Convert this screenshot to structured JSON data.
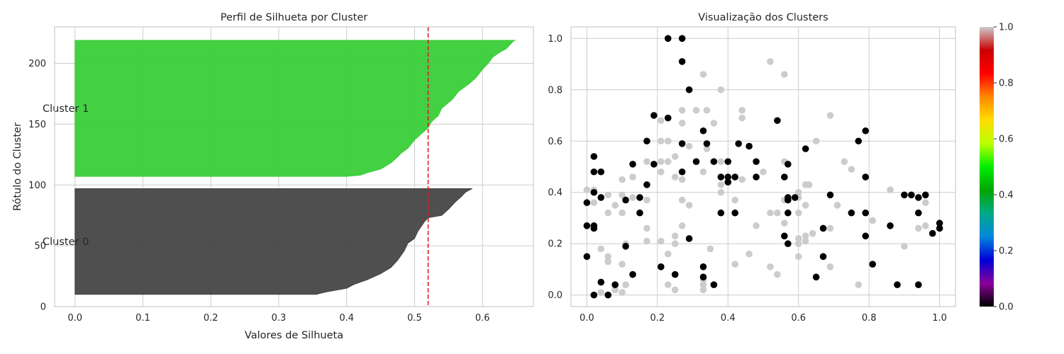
{
  "chart_data": [
    {
      "type": "area",
      "title": "Perfil de Silhueta por Cluster",
      "xlabel": "Valores de Silhueta",
      "ylabel": "Rótulo do Cluster",
      "xlim": [
        -0.03,
        0.675
      ],
      "ylim": [
        0,
        230
      ],
      "xticks": [
        "0.0",
        "0.1",
        "0.2",
        "0.3",
        "0.4",
        "0.5",
        "0.6"
      ],
      "yticks": [
        "0",
        "50",
        "100",
        "150",
        "200"
      ],
      "grid": true,
      "average_silhouette": 0.52,
      "reference_line_color": "#e41a1c",
      "clusters": [
        {
          "label": "Cluster 0",
          "color": "#404040",
          "y_range": [
            10,
            97
          ],
          "profile": [
            [
              10,
              0.355
            ],
            [
              12,
              0.37
            ],
            [
              15,
              0.4
            ],
            [
              18,
              0.41
            ],
            [
              22,
              0.43
            ],
            [
              27,
              0.45
            ],
            [
              32,
              0.465
            ],
            [
              38,
              0.475
            ],
            [
              42,
              0.48
            ],
            [
              46,
              0.485
            ],
            [
              52,
              0.49
            ],
            [
              56,
              0.5
            ],
            [
              62,
              0.505
            ],
            [
              66,
              0.51
            ],
            [
              70,
              0.515
            ],
            [
              73,
              0.52
            ],
            [
              75,
              0.54
            ],
            [
              80,
              0.55
            ],
            [
              86,
              0.56
            ],
            [
              91,
              0.57
            ],
            [
              94,
              0.575
            ],
            [
              97,
              0.585
            ]
          ]
        },
        {
          "label": "Cluster 1",
          "color": "#33cc33",
          "y_range": [
            107,
            219
          ],
          "profile": [
            [
              107,
              0.4
            ],
            [
              108,
              0.42
            ],
            [
              110,
              0.43
            ],
            [
              113,
              0.45
            ],
            [
              118,
              0.465
            ],
            [
              123,
              0.475
            ],
            [
              126,
              0.48
            ],
            [
              130,
              0.49
            ],
            [
              137,
              0.5
            ],
            [
              142,
              0.51
            ],
            [
              147,
              0.52
            ],
            [
              152,
              0.525
            ],
            [
              157,
              0.535
            ],
            [
              163,
              0.54
            ],
            [
              170,
              0.555
            ],
            [
              177,
              0.565
            ],
            [
              183,
              0.58
            ],
            [
              188,
              0.59
            ],
            [
              195,
              0.6
            ],
            [
              201,
              0.61
            ],
            [
              205,
              0.615
            ],
            [
              209,
              0.625
            ],
            [
              212,
              0.635
            ],
            [
              215,
              0.64
            ],
            [
              218,
              0.645
            ],
            [
              219,
              0.648
            ]
          ]
        }
      ]
    },
    {
      "type": "scatter",
      "title": "Visualização dos Clusters",
      "xlim": [
        -0.045,
        1.045
      ],
      "ylim": [
        -0.045,
        1.045
      ],
      "xticks": [
        "0.0",
        "0.2",
        "0.4",
        "0.6",
        "0.8",
        "1.0"
      ],
      "yticks": [
        "0.0",
        "0.2",
        "0.4",
        "0.6",
        "0.8",
        "1.0"
      ],
      "grid": true,
      "colormap": "nipy_spectral",
      "colorbar_ticks": [
        "0.0",
        "0.2",
        "0.4",
        "0.6",
        "0.8",
        "1.0"
      ],
      "colorbar_stops": [
        "#000000",
        "#8a009a",
        "#0000d9",
        "#0088dd",
        "#00aa88",
        "#00a600",
        "#00ee00",
        "#bbff00",
        "#ffdd00",
        "#ff8800",
        "#ff0000",
        "#cc0000",
        "#cccccc"
      ],
      "series": [
        {
          "color": "#000000",
          "points": [
            [
              0.23,
              1.0
            ],
            [
              0.27,
              1.0
            ],
            [
              0.27,
              0.91
            ],
            [
              0.29,
              0.8
            ],
            [
              0.19,
              0.7
            ],
            [
              0.23,
              0.69
            ],
            [
              0.54,
              0.68
            ],
            [
              0.33,
              0.64
            ],
            [
              0.79,
              0.64
            ],
            [
              0.17,
              0.6
            ],
            [
              0.27,
              0.59
            ],
            [
              0.34,
              0.59
            ],
            [
              0.43,
              0.59
            ],
            [
              0.46,
              0.58
            ],
            [
              0.77,
              0.6
            ],
            [
              0.62,
              0.57
            ],
            [
              0.02,
              0.54
            ],
            [
              0.19,
              0.51
            ],
            [
              0.13,
              0.51
            ],
            [
              0.31,
              0.52
            ],
            [
              0.36,
              0.52
            ],
            [
              0.4,
              0.52
            ],
            [
              0.48,
              0.52
            ],
            [
              0.57,
              0.51
            ],
            [
              0.02,
              0.48
            ],
            [
              0.04,
              0.48
            ],
            [
              0.27,
              0.48
            ],
            [
              0.38,
              0.46
            ],
            [
              0.4,
              0.46
            ],
            [
              0.42,
              0.46
            ],
            [
              0.4,
              0.44
            ],
            [
              0.48,
              0.46
            ],
            [
              0.56,
              0.46
            ],
            [
              0.79,
              0.46
            ],
            [
              0.17,
              0.43
            ],
            [
              0.02,
              0.4
            ],
            [
              0.69,
              0.39
            ],
            [
              0.9,
              0.39
            ],
            [
              0.92,
              0.39
            ],
            [
              0.94,
              0.38
            ],
            [
              0.96,
              0.39
            ],
            [
              0.04,
              0.38
            ],
            [
              0.15,
              0.38
            ],
            [
              0.11,
              0.37
            ],
            [
              0.57,
              0.38
            ],
            [
              0.59,
              0.38
            ],
            [
              0.57,
              0.37
            ],
            [
              0.0,
              0.36
            ],
            [
              0.15,
              0.32
            ],
            [
              0.38,
              0.32
            ],
            [
              0.42,
              0.32
            ],
            [
              0.57,
              0.32
            ],
            [
              0.75,
              0.32
            ],
            [
              0.79,
              0.32
            ],
            [
              0.94,
              0.32
            ],
            [
              0.0,
              0.27
            ],
            [
              0.02,
              0.27
            ],
            [
              0.02,
              0.26
            ],
            [
              0.67,
              0.26
            ],
            [
              0.86,
              0.27
            ],
            [
              1.0,
              0.28
            ],
            [
              1.0,
              0.26
            ],
            [
              0.98,
              0.24
            ],
            [
              0.29,
              0.22
            ],
            [
              0.56,
              0.23
            ],
            [
              0.79,
              0.23
            ],
            [
              0.11,
              0.19
            ],
            [
              0.57,
              0.2
            ],
            [
              0.0,
              0.15
            ],
            [
              0.67,
              0.15
            ],
            [
              0.81,
              0.12
            ],
            [
              0.21,
              0.11
            ],
            [
              0.33,
              0.11
            ],
            [
              0.13,
              0.08
            ],
            [
              0.25,
              0.08
            ],
            [
              0.33,
              0.07
            ],
            [
              0.04,
              0.05
            ],
            [
              0.08,
              0.04
            ],
            [
              0.36,
              0.04
            ],
            [
              0.65,
              0.07
            ],
            [
              0.88,
              0.04
            ],
            [
              0.94,
              0.04
            ],
            [
              0.02,
              0.0
            ],
            [
              0.06,
              0.0
            ]
          ]
        },
        {
          "color": "#cccccc",
          "points": [
            [
              0.52,
              0.91
            ],
            [
              0.56,
              0.86
            ],
            [
              0.33,
              0.86
            ],
            [
              0.38,
              0.8
            ],
            [
              0.27,
              0.72
            ],
            [
              0.31,
              0.72
            ],
            [
              0.34,
              0.72
            ],
            [
              0.44,
              0.72
            ],
            [
              0.27,
              0.67
            ],
            [
              0.36,
              0.67
            ],
            [
              0.44,
              0.69
            ],
            [
              0.69,
              0.7
            ],
            [
              0.21,
              0.68
            ],
            [
              0.21,
              0.6
            ],
            [
              0.23,
              0.6
            ],
            [
              0.29,
              0.58
            ],
            [
              0.65,
              0.6
            ],
            [
              0.25,
              0.54
            ],
            [
              0.34,
              0.57
            ],
            [
              0.17,
              0.52
            ],
            [
              0.21,
              0.52
            ],
            [
              0.23,
              0.52
            ],
            [
              0.38,
              0.52
            ],
            [
              0.56,
              0.52
            ],
            [
              0.73,
              0.52
            ],
            [
              0.21,
              0.48
            ],
            [
              0.31,
              0.52
            ],
            [
              0.33,
              0.48
            ],
            [
              0.25,
              0.46
            ],
            [
              0.5,
              0.48
            ],
            [
              0.13,
              0.46
            ],
            [
              0.1,
              0.45
            ],
            [
              0.27,
              0.45
            ],
            [
              0.44,
              0.45
            ],
            [
              0.38,
              0.43
            ],
            [
              0.62,
              0.43
            ],
            [
              0.63,
              0.43
            ],
            [
              0.75,
              0.49
            ],
            [
              0.0,
              0.41
            ],
            [
              0.02,
              0.41
            ],
            [
              0.06,
              0.39
            ],
            [
              0.1,
              0.39
            ],
            [
              0.38,
              0.4
            ],
            [
              0.6,
              0.4
            ],
            [
              0.86,
              0.41
            ],
            [
              0.13,
              0.38
            ],
            [
              0.17,
              0.37
            ],
            [
              0.27,
              0.37
            ],
            [
              0.42,
              0.37
            ],
            [
              0.56,
              0.37
            ],
            [
              0.6,
              0.38
            ],
            [
              0.02,
              0.36
            ],
            [
              0.08,
              0.35
            ],
            [
              0.29,
              0.35
            ],
            [
              0.62,
              0.35
            ],
            [
              0.71,
              0.35
            ],
            [
              0.96,
              0.36
            ],
            [
              0.06,
              0.32
            ],
            [
              0.1,
              0.32
            ],
            [
              0.52,
              0.32
            ],
            [
              0.54,
              0.32
            ],
            [
              0.6,
              0.32
            ],
            [
              0.81,
              0.29
            ],
            [
              0.27,
              0.27
            ],
            [
              0.48,
              0.27
            ],
            [
              0.56,
              0.28
            ],
            [
              0.69,
              0.26
            ],
            [
              0.94,
              0.26
            ],
            [
              0.96,
              0.27
            ],
            [
              0.17,
              0.26
            ],
            [
              0.25,
              0.23
            ],
            [
              0.6,
              0.22
            ],
            [
              0.62,
              0.23
            ],
            [
              0.64,
              0.24
            ],
            [
              0.11,
              0.2
            ],
            [
              0.17,
              0.21
            ],
            [
              0.21,
              0.21
            ],
            [
              0.25,
              0.2
            ],
            [
              0.6,
              0.2
            ],
            [
              0.62,
              0.21
            ],
            [
              0.9,
              0.19
            ],
            [
              0.04,
              0.18
            ],
            [
              0.35,
              0.18
            ],
            [
              0.23,
              0.16
            ],
            [
              0.46,
              0.16
            ],
            [
              0.06,
              0.15
            ],
            [
              0.6,
              0.15
            ],
            [
              0.06,
              0.13
            ],
            [
              0.1,
              0.12
            ],
            [
              0.42,
              0.12
            ],
            [
              0.52,
              0.11
            ],
            [
              0.69,
              0.11
            ],
            [
              0.54,
              0.08
            ],
            [
              0.33,
              0.06
            ],
            [
              0.33,
              0.04
            ],
            [
              0.23,
              0.04
            ],
            [
              0.11,
              0.04
            ],
            [
              0.08,
              0.02
            ],
            [
              0.1,
              0.01
            ],
            [
              0.33,
              0.02
            ],
            [
              0.77,
              0.04
            ],
            [
              0.04,
              0.01
            ],
            [
              0.25,
              0.02
            ]
          ]
        }
      ]
    }
  ]
}
